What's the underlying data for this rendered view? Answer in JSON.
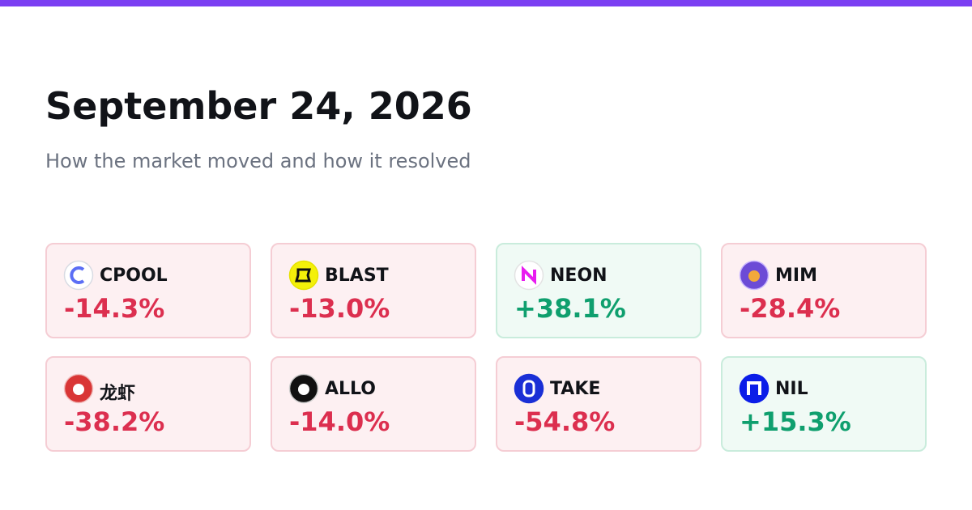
{
  "header": {
    "title": "September 24, 2026",
    "subtitle": "How the market moved and how it resolved"
  },
  "cards": [
    {
      "name": "CPOOL",
      "change": "-14.3%"
    },
    {
      "name": "BLAST",
      "change": "-13.0%"
    },
    {
      "name": "NEON",
      "change": "+38.1%"
    },
    {
      "name": "MIM",
      "change": "-28.4%"
    },
    {
      "name": "龙虾",
      "change": "-38.2%"
    },
    {
      "name": "ALLO",
      "change": "-14.0%"
    },
    {
      "name": "TAKE",
      "change": "-54.8%"
    },
    {
      "name": "NIL",
      "change": "+15.3%"
    }
  ]
}
